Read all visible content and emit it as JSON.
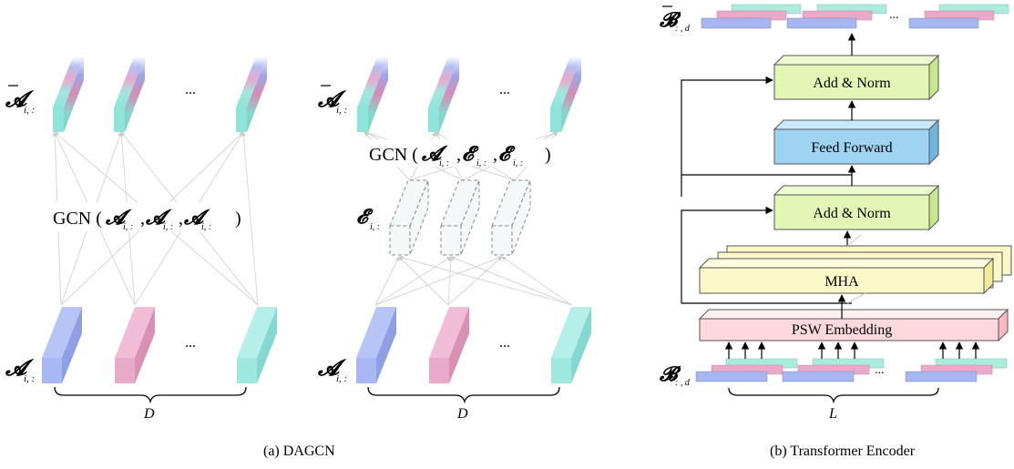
{
  "left": {
    "sym_A": "𝓐",
    "sym_Abar": "𝓐",
    "sym_E": "𝓔",
    "sub_i": "i, :",
    "ellipsis": "...",
    "gcn1": {
      "prefix": "GCN (",
      "a1": "𝓐",
      "s1": "i, :",
      "comma1": ",",
      "a2": "𝓐",
      "s2": "i, :",
      "comma2": ",",
      "a3": "𝓐",
      "s3": "i, :",
      "suffix": ")"
    },
    "gcn2": {
      "prefix": "GCN (",
      "a1": "𝓐",
      "s1": "i, :",
      "comma1": ",",
      "a2": "𝓔",
      "s2": "i, :",
      "comma2": ",",
      "a3": "𝓔",
      "s3": "i, :",
      "suffix": ")"
    },
    "dim_D": "D",
    "caption": "(a) DAGCN"
  },
  "right": {
    "sym_B": "𝓑",
    "sym_Bbar": "𝓑",
    "sub_d": ": , d",
    "dim_L": "L",
    "ellipsis": "...",
    "blocks": {
      "add_norm_top": "Add &  Norm",
      "feed_forward": "Feed Forward",
      "add_norm_bottom": "Add &  Norm",
      "mha": "MHA",
      "psw": "PSW Embedding"
    },
    "caption": "(b) Transformer Encoder"
  },
  "colors": {
    "blue": "#a8b8f4",
    "pink": "#e8aac8",
    "cyan": "#9ee8e0",
    "green": "#e2f7b6",
    "feed": "#9fd3f2",
    "yellow": "#fbf8c8",
    "psw": "#fdd9dd"
  }
}
